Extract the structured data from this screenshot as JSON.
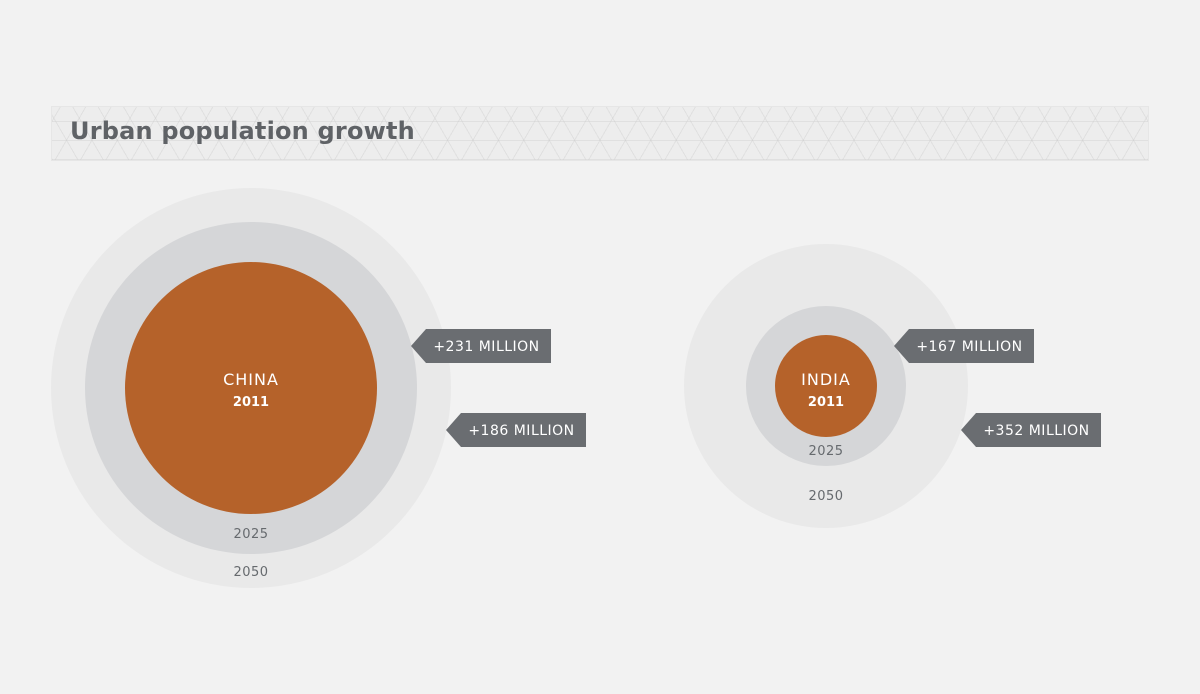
{
  "title": "Urban population growth",
  "colors": {
    "base_2011": "#b5622a",
    "ring_2025": "#d5d6d8",
    "ring_2050": "#e9e9e9",
    "tag": "#6a6d71",
    "text_year": "#666a6e",
    "background": "#f2f2f2"
  },
  "chart_data": {
    "type": "nested-bubble",
    "title": "Urban population growth",
    "groups": [
      {
        "country": "CHINA",
        "base_year": "2011",
        "rings": [
          {
            "year": "2011",
            "label": "2011"
          },
          {
            "year": "2025",
            "label": "2025",
            "increase_label": "+231 MILLION",
            "increase_millions": 231
          },
          {
            "year": "2050",
            "label": "2050",
            "increase_label": "+186 MILLION",
            "increase_millions": 186
          }
        ]
      },
      {
        "country": "INDIA",
        "base_year": "2011",
        "rings": [
          {
            "year": "2011",
            "label": "2011"
          },
          {
            "year": "2025",
            "label": "2025",
            "increase_label": "+167 MILLION",
            "increase_millions": 167
          },
          {
            "year": "2050",
            "label": "2050",
            "increase_label": "+352 MILLION",
            "increase_millions": 352
          }
        ]
      }
    ]
  }
}
